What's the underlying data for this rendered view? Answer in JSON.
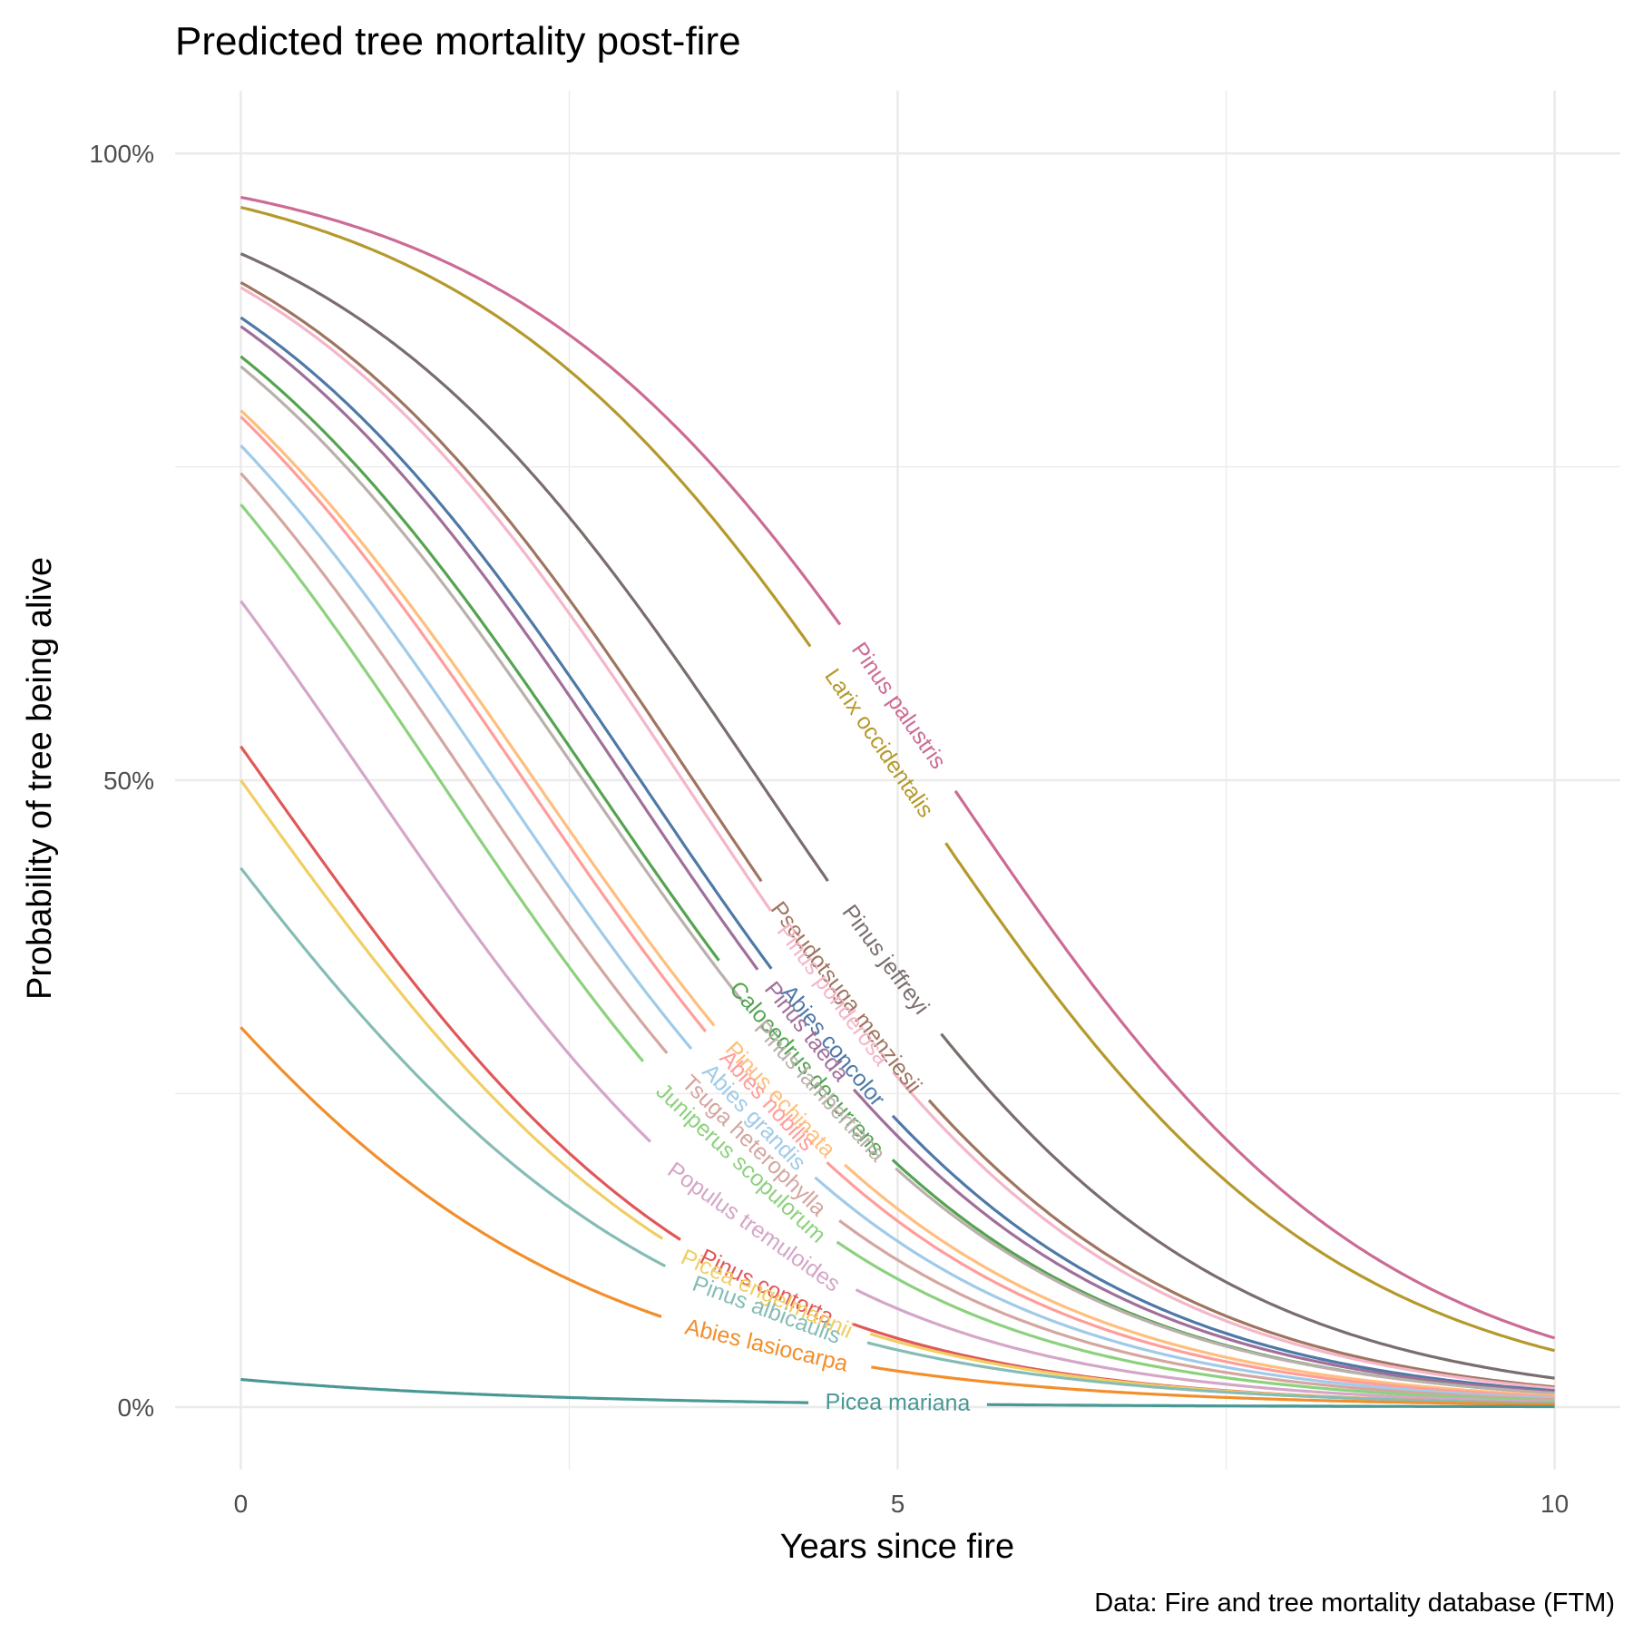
{
  "chart_data": {
    "type": "line",
    "title": "Predicted tree mortality post-fire",
    "xlabel": "Years since fire",
    "ylabel": "Probability of tree being alive",
    "caption": "Data: Fire and tree mortality database (FTM)",
    "xlim": [
      -0.5,
      10.5
    ],
    "ylim": [
      -0.05,
      1.05
    ],
    "x_ticks": [
      0,
      5,
      10
    ],
    "x_tick_labels": [
      "0",
      "5",
      "10"
    ],
    "x_minor": [
      2.5,
      7.5
    ],
    "y_ticks": [
      0,
      0.5,
      1
    ],
    "y_tick_labels": [
      "0%",
      "50%",
      "100%"
    ],
    "y_minor": [
      0.25,
      0.75
    ],
    "grid": true,
    "legend": "none (direct labels on lines)",
    "model": "logistic curve from p(0) to p(end)",
    "series": [
      {
        "name": "Pinus palustris",
        "color": "#cc6b95",
        "p0": 0.965,
        "p10": 0.055,
        "label_x": 5.0
      },
      {
        "name": "Larix occidentalis",
        "color": "#b5992c",
        "p0": 0.957,
        "p10": 0.045,
        "label_x": 4.85
      },
      {
        "name": "Pinus jeffreyi",
        "color": "#7a6d6d",
        "p0": 0.92,
        "p10": 0.023,
        "label_x": 4.9
      },
      {
        "name": "Pseudotsuga menziesii",
        "color": "#9e7560",
        "p0": 0.897,
        "p10": 0.016,
        "label_x": 4.6
      },
      {
        "name": "Pinus ponderosa",
        "color": "#f4b6c8",
        "p0": 0.893,
        "p10": 0.015,
        "label_x": 4.5
      },
      {
        "name": "Abies concolor",
        "color": "#4e79a7",
        "p0": 0.869,
        "p10": 0.013,
        "label_x": 4.5
      },
      {
        "name": "Pinus taeda",
        "color": "#a06f9a",
        "p0": 0.862,
        "p10": 0.012,
        "label_x": 4.3
      },
      {
        "name": "Calocedrus decurrens",
        "color": "#55a351",
        "p0": 0.838,
        "p10": 0.011,
        "label_x": 4.3
      },
      {
        "name": "Pinus lambertiana",
        "color": "#bab0ac",
        "p0": 0.83,
        "p10": 0.011,
        "label_x": 4.4
      },
      {
        "name": "Pinus echinata",
        "color": "#ffbe7d",
        "p0": 0.795,
        "p10": 0.009,
        "label_x": 4.1
      },
      {
        "name": "Abies nobilis",
        "color": "#ff9d9a",
        "p0": 0.79,
        "p10": 0.008,
        "label_x": 4.0
      },
      {
        "name": "Abies grandis",
        "color": "#a0cbe8",
        "p0": 0.767,
        "p10": 0.007,
        "label_x": 3.9
      },
      {
        "name": "Tsuga heterophylla",
        "color": "#d4a6a0",
        "p0": 0.745,
        "p10": 0.006,
        "label_x": 3.9
      },
      {
        "name": "Juniperus scopulorum",
        "color": "#8cd17d",
        "p0": 0.72,
        "p10": 0.005,
        "label_x": 3.8
      },
      {
        "name": "Populus tremuloides",
        "color": "#d4a6c8",
        "p0": 0.643,
        "p10": 0.004,
        "label_x": 3.9
      },
      {
        "name": "Pinus contorta",
        "color": "#e15759",
        "p0": 0.527,
        "p10": 0.003,
        "label_x": 4.0
      },
      {
        "name": "Picea engelmannii",
        "color": "#f1ce63",
        "p0": 0.5,
        "p10": 0.003,
        "label_x": 4.0
      },
      {
        "name": "Pinus albicaulis",
        "color": "#86bcb6",
        "p0": 0.43,
        "p10": 0.003,
        "label_x": 4.0
      },
      {
        "name": "Abies lasiocarpa",
        "color": "#f28e2b",
        "p0": 0.303,
        "p10": 0.002,
        "label_x": 4.0
      },
      {
        "name": "Picea mariana",
        "color": "#499894",
        "p0": 0.022,
        "p10": 0.0003,
        "label_x": 5.0
      }
    ]
  }
}
